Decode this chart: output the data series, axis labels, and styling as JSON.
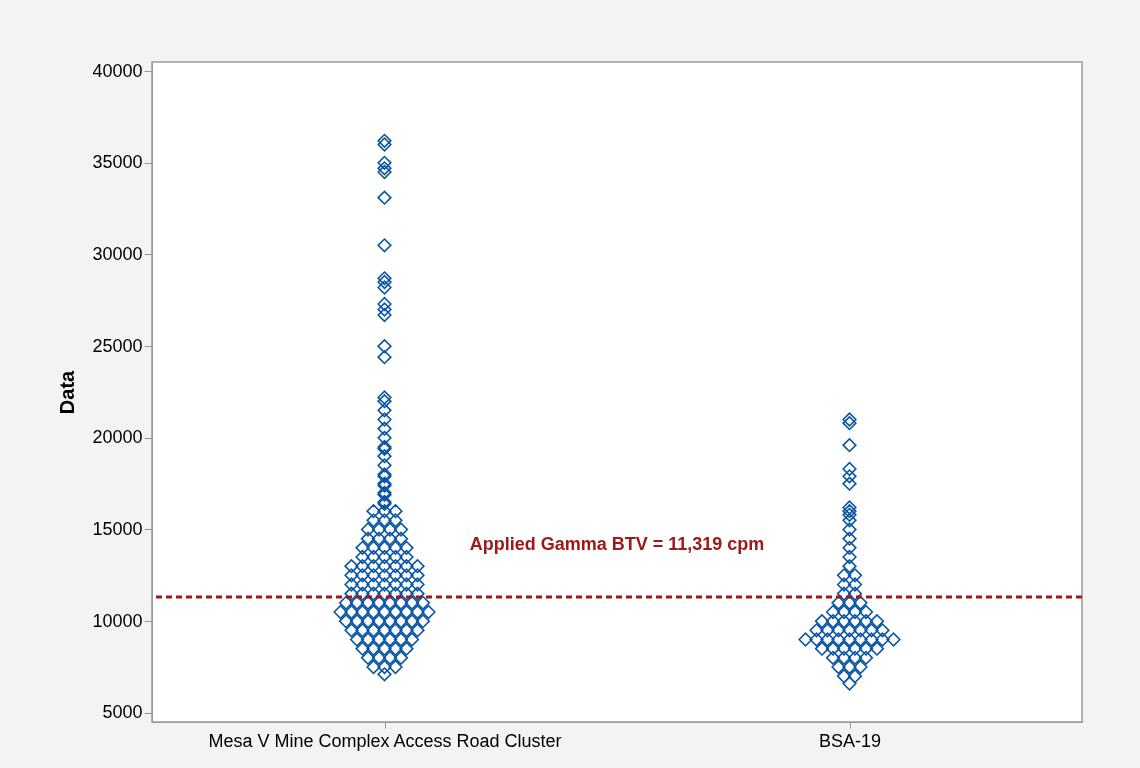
{
  "chart_data": {
    "type": "scatter",
    "ylabel": "Data",
    "categories": [
      "Mesa V Mine Complex Access Road Cluster",
      "BSA-19"
    ],
    "ylim": [
      4500,
      40500
    ],
    "yticks": [
      5000,
      10000,
      15000,
      20000,
      25000,
      30000,
      35000,
      40000
    ],
    "grid": false,
    "legend": false,
    "marker": "diamond",
    "series": [
      {
        "color": "#0a56a4",
        "x": [
          "Mesa V Mine Complex Access Road Cluster",
          "Mesa V Mine Complex Access Road Cluster",
          "Mesa V Mine Complex Access Road Cluster",
          "Mesa V Mine Complex Access Road Cluster",
          "Mesa V Mine Complex Access Road Cluster",
          "Mesa V Mine Complex Access Road Cluster",
          "Mesa V Mine Complex Access Road Cluster",
          "Mesa V Mine Complex Access Road Cluster",
          "Mesa V Mine Complex Access Road Cluster",
          "Mesa V Mine Complex Access Road Cluster",
          "Mesa V Mine Complex Access Road Cluster",
          "Mesa V Mine Complex Access Road Cluster",
          "Mesa V Mine Complex Access Road Cluster",
          "Mesa V Mine Complex Access Road Cluster",
          "Mesa V Mine Complex Access Road Cluster",
          "Mesa V Mine Complex Access Road Cluster",
          "Mesa V Mine Complex Access Road Cluster",
          "Mesa V Mine Complex Access Road Cluster",
          "Mesa V Mine Complex Access Road Cluster",
          "Mesa V Mine Complex Access Road Cluster",
          "Mesa V Mine Complex Access Road Cluster",
          "Mesa V Mine Complex Access Road Cluster",
          "Mesa V Mine Complex Access Road Cluster",
          "Mesa V Mine Complex Access Road Cluster",
          "Mesa V Mine Complex Access Road Cluster",
          "Mesa V Mine Complex Access Road Cluster",
          "Mesa V Mine Complex Access Road Cluster",
          "Mesa V Mine Complex Access Road Cluster",
          "Mesa V Mine Complex Access Road Cluster",
          "Mesa V Mine Complex Access Road Cluster",
          "Mesa V Mine Complex Access Road Cluster",
          "Mesa V Mine Complex Access Road Cluster",
          "Mesa V Mine Complex Access Road Cluster",
          "Mesa V Mine Complex Access Road Cluster",
          "Mesa V Mine Complex Access Road Cluster",
          "Mesa V Mine Complex Access Road Cluster",
          "Mesa V Mine Complex Access Road Cluster",
          "Mesa V Mine Complex Access Road Cluster",
          "Mesa V Mine Complex Access Road Cluster",
          "Mesa V Mine Complex Access Road Cluster",
          "Mesa V Mine Complex Access Road Cluster",
          "Mesa V Mine Complex Access Road Cluster",
          "Mesa V Mine Complex Access Road Cluster",
          "Mesa V Mine Complex Access Road Cluster",
          "Mesa V Mine Complex Access Road Cluster",
          "Mesa V Mine Complex Access Road Cluster",
          "Mesa V Mine Complex Access Road Cluster",
          "Mesa V Mine Complex Access Road Cluster",
          "Mesa V Mine Complex Access Road Cluster",
          "Mesa V Mine Complex Access Road Cluster",
          "Mesa V Mine Complex Access Road Cluster",
          "Mesa V Mine Complex Access Road Cluster",
          "Mesa V Mine Complex Access Road Cluster",
          "Mesa V Mine Complex Access Road Cluster",
          "Mesa V Mine Complex Access Road Cluster",
          "Mesa V Mine Complex Access Road Cluster",
          "Mesa V Mine Complex Access Road Cluster",
          "Mesa V Mine Complex Access Road Cluster",
          "Mesa V Mine Complex Access Road Cluster",
          "Mesa V Mine Complex Access Road Cluster",
          "Mesa V Mine Complex Access Road Cluster",
          "Mesa V Mine Complex Access Road Cluster",
          "Mesa V Mine Complex Access Road Cluster",
          "Mesa V Mine Complex Access Road Cluster",
          "Mesa V Mine Complex Access Road Cluster",
          "Mesa V Mine Complex Access Road Cluster",
          "Mesa V Mine Complex Access Road Cluster",
          "Mesa V Mine Complex Access Road Cluster",
          "Mesa V Mine Complex Access Road Cluster",
          "Mesa V Mine Complex Access Road Cluster",
          "Mesa V Mine Complex Access Road Cluster",
          "Mesa V Mine Complex Access Road Cluster",
          "Mesa V Mine Complex Access Road Cluster",
          "Mesa V Mine Complex Access Road Cluster",
          "Mesa V Mine Complex Access Road Cluster",
          "Mesa V Mine Complex Access Road Cluster",
          "Mesa V Mine Complex Access Road Cluster",
          "Mesa V Mine Complex Access Road Cluster",
          "Mesa V Mine Complex Access Road Cluster",
          "Mesa V Mine Complex Access Road Cluster",
          "Mesa V Mine Complex Access Road Cluster",
          "Mesa V Mine Complex Access Road Cluster",
          "Mesa V Mine Complex Access Road Cluster",
          "Mesa V Mine Complex Access Road Cluster",
          "Mesa V Mine Complex Access Road Cluster",
          "Mesa V Mine Complex Access Road Cluster",
          "Mesa V Mine Complex Access Road Cluster",
          "Mesa V Mine Complex Access Road Cluster",
          "Mesa V Mine Complex Access Road Cluster",
          "Mesa V Mine Complex Access Road Cluster",
          "Mesa V Mine Complex Access Road Cluster",
          "Mesa V Mine Complex Access Road Cluster",
          "Mesa V Mine Complex Access Road Cluster",
          "Mesa V Mine Complex Access Road Cluster",
          "Mesa V Mine Complex Access Road Cluster",
          "Mesa V Mine Complex Access Road Cluster",
          "Mesa V Mine Complex Access Road Cluster",
          "Mesa V Mine Complex Access Road Cluster",
          "Mesa V Mine Complex Access Road Cluster",
          "Mesa V Mine Complex Access Road Cluster",
          "Mesa V Mine Complex Access Road Cluster",
          "Mesa V Mine Complex Access Road Cluster",
          "Mesa V Mine Complex Access Road Cluster",
          "Mesa V Mine Complex Access Road Cluster",
          "Mesa V Mine Complex Access Road Cluster",
          "Mesa V Mine Complex Access Road Cluster",
          "Mesa V Mine Complex Access Road Cluster",
          "Mesa V Mine Complex Access Road Cluster",
          "Mesa V Mine Complex Access Road Cluster",
          "Mesa V Mine Complex Access Road Cluster",
          "Mesa V Mine Complex Access Road Cluster",
          "Mesa V Mine Complex Access Road Cluster",
          "Mesa V Mine Complex Access Road Cluster",
          "Mesa V Mine Complex Access Road Cluster",
          "Mesa V Mine Complex Access Road Cluster",
          "Mesa V Mine Complex Access Road Cluster",
          "Mesa V Mine Complex Access Road Cluster",
          "Mesa V Mine Complex Access Road Cluster",
          "Mesa V Mine Complex Access Road Cluster",
          "Mesa V Mine Complex Access Road Cluster",
          "Mesa V Mine Complex Access Road Cluster",
          "Mesa V Mine Complex Access Road Cluster",
          "Mesa V Mine Complex Access Road Cluster",
          "Mesa V Mine Complex Access Road Cluster",
          "Mesa V Mine Complex Access Road Cluster",
          "Mesa V Mine Complex Access Road Cluster",
          "Mesa V Mine Complex Access Road Cluster",
          "Mesa V Mine Complex Access Road Cluster",
          "Mesa V Mine Complex Access Road Cluster",
          "Mesa V Mine Complex Access Road Cluster",
          "Mesa V Mine Complex Access Road Cluster",
          "Mesa V Mine Complex Access Road Cluster",
          "Mesa V Mine Complex Access Road Cluster",
          "Mesa V Mine Complex Access Road Cluster",
          "Mesa V Mine Complex Access Road Cluster",
          "Mesa V Mine Complex Access Road Cluster"
        ],
        "values": [
          36200,
          36000,
          35000,
          34700,
          34500,
          33100,
          30500,
          28700,
          28500,
          28200,
          27300,
          27000,
          26700,
          25000,
          24400,
          22200,
          22000,
          21500,
          21000,
          20500,
          20000,
          19500,
          19400,
          19000,
          18500,
          18000,
          17900,
          17500,
          17400,
          17000,
          16900,
          16500,
          16400,
          16000,
          16000,
          16000,
          15500,
          15500,
          15500,
          15000,
          15000,
          15000,
          15000,
          14500,
          14500,
          14500,
          14500,
          14000,
          14000,
          14000,
          14000,
          14000,
          13500,
          13500,
          13500,
          13500,
          13500,
          13000,
          13000,
          13000,
          13000,
          13000,
          13000,
          13000,
          12500,
          12500,
          12500,
          12500,
          12500,
          12500,
          12500,
          12000,
          12000,
          12000,
          12000,
          12000,
          12000,
          12000,
          11500,
          11500,
          11500,
          11500,
          11500,
          11500,
          11500,
          11000,
          11000,
          11000,
          11000,
          11000,
          11000,
          11000,
          11000,
          10500,
          10500,
          10500,
          10500,
          10500,
          10500,
          10500,
          10500,
          10500,
          10000,
          10000,
          10000,
          10000,
          10000,
          10000,
          10000,
          10000,
          9500,
          9500,
          9500,
          9500,
          9500,
          9500,
          9500,
          9000,
          9000,
          9000,
          9000,
          9000,
          9000,
          8500,
          8500,
          8500,
          8500,
          8500,
          8000,
          8000,
          8000,
          8000,
          7500,
          7500,
          7500,
          7100
        ]
      },
      {
        "color": "#0a56a4",
        "x": [
          "BSA-19",
          "BSA-19",
          "BSA-19",
          "BSA-19",
          "BSA-19",
          "BSA-19",
          "BSA-19",
          "BSA-19",
          "BSA-19",
          "BSA-19",
          "BSA-19",
          "BSA-19",
          "BSA-19",
          "BSA-19",
          "BSA-19",
          "BSA-19",
          "BSA-19",
          "BSA-19",
          "BSA-19",
          "BSA-19",
          "BSA-19",
          "BSA-19",
          "BSA-19",
          "BSA-19",
          "BSA-19",
          "BSA-19",
          "BSA-19",
          "BSA-19",
          "BSA-19",
          "BSA-19",
          "BSA-19",
          "BSA-19",
          "BSA-19",
          "BSA-19",
          "BSA-19",
          "BSA-19",
          "BSA-19",
          "BSA-19",
          "BSA-19",
          "BSA-19",
          "BSA-19",
          "BSA-19",
          "BSA-19",
          "BSA-19",
          "BSA-19",
          "BSA-19",
          "BSA-19",
          "BSA-19",
          "BSA-19",
          "BSA-19",
          "BSA-19",
          "BSA-19",
          "BSA-19",
          "BSA-19",
          "BSA-19",
          "BSA-19",
          "BSA-19",
          "BSA-19",
          "BSA-19",
          "BSA-19",
          "BSA-19",
          "BSA-19",
          "BSA-19",
          "BSA-19",
          "BSA-19",
          "BSA-19"
        ],
        "values": [
          21000,
          20800,
          19600,
          18300,
          17900,
          17500,
          16200,
          16000,
          15800,
          15500,
          15000,
          14500,
          14000,
          13500,
          13000,
          12500,
          12500,
          12000,
          12000,
          11500,
          11500,
          11000,
          11000,
          11000,
          10500,
          10500,
          10500,
          10500,
          10000,
          10000,
          10000,
          10000,
          10000,
          10000,
          9500,
          9500,
          9500,
          9500,
          9500,
          9500,
          9500,
          9000,
          9000,
          9000,
          9000,
          9000,
          9000,
          9000,
          9000,
          9000,
          8500,
          8500,
          8500,
          8500,
          8500,
          8500,
          8000,
          8000,
          8000,
          8000,
          7500,
          7500,
          7500,
          7000,
          7000,
          6600
        ]
      }
    ],
    "ref_lines": [
      {
        "axis": "y",
        "value": 11319,
        "label": "Applied Gamma BTV = 11,319 cpm",
        "color": "#a01818",
        "line_style": "dashed"
      }
    ]
  }
}
